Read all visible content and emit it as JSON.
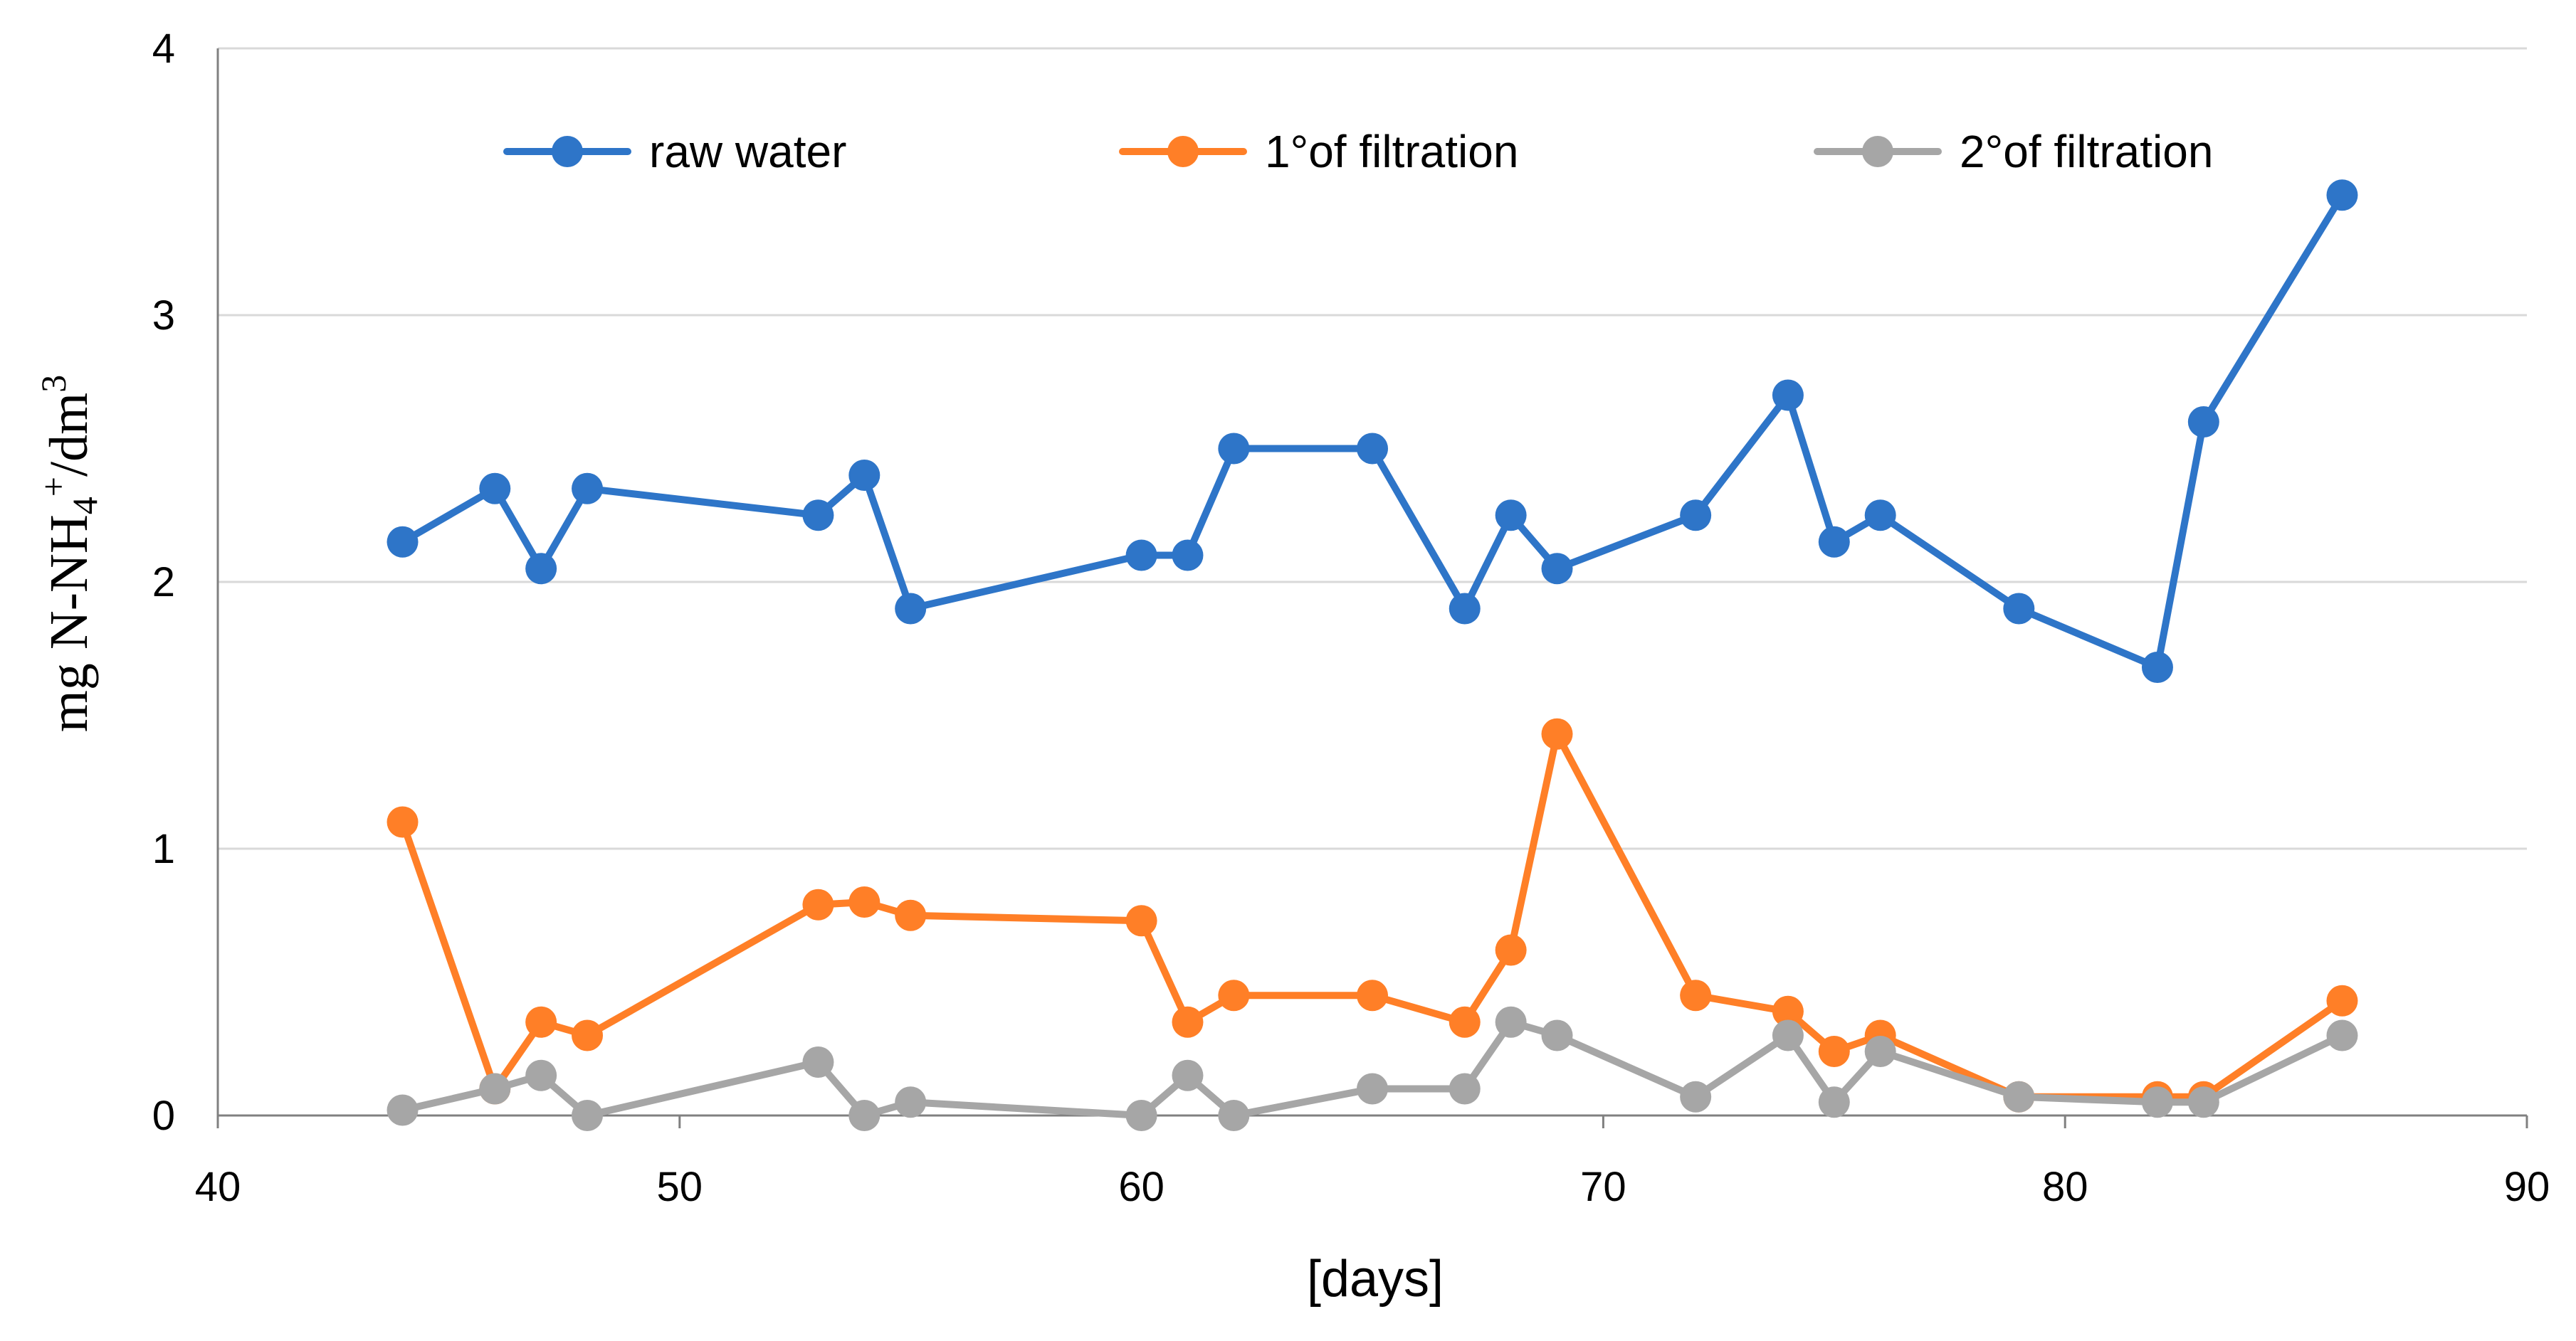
{
  "chart_data": {
    "type": "line",
    "title": "",
    "xlabel": "[days]",
    "ylabel": {
      "prefix": "mg  N-NH",
      "subscript": "4",
      "superscript": "+",
      "middle": "/dm",
      "superscript2": "3"
    },
    "xlim": [
      40,
      90
    ],
    "ylim": [
      0,
      4
    ],
    "xticks": [
      40,
      50,
      60,
      70,
      80,
      90
    ],
    "yticks": [
      0,
      1,
      2,
      3,
      4
    ],
    "grid": "horizontal",
    "legend_position": "top",
    "series": [
      {
        "name": "raw water",
        "color": "#2E75C8",
        "x": [
          44,
          46,
          47,
          48,
          53,
          54,
          55,
          60,
          61,
          62,
          65,
          67,
          68,
          69,
          72,
          74,
          75,
          76,
          79,
          82,
          83,
          86
        ],
        "y": [
          2.15,
          2.35,
          2.05,
          2.35,
          2.25,
          2.4,
          1.9,
          2.1,
          2.1,
          2.5,
          2.5,
          1.9,
          2.25,
          2.05,
          2.25,
          2.7,
          2.15,
          2.25,
          1.9,
          1.68,
          2.6,
          3.45
        ]
      },
      {
        "name": "1°of filtration",
        "color": "#FF7F27",
        "x": [
          44,
          46,
          47,
          48,
          53,
          54,
          55,
          60,
          61,
          62,
          65,
          67,
          68,
          69,
          72,
          74,
          75,
          76,
          79,
          82,
          83,
          86
        ],
        "y": [
          1.1,
          0.1,
          0.35,
          0.3,
          0.79,
          0.8,
          0.75,
          0.73,
          0.35,
          0.45,
          0.45,
          0.35,
          0.62,
          1.43,
          0.45,
          0.39,
          0.24,
          0.3,
          0.07,
          0.07,
          0.07,
          0.43
        ]
      },
      {
        "name": "2°of filtration",
        "color": "#A6A6A6",
        "x": [
          44,
          46,
          47,
          48,
          53,
          54,
          55,
          60,
          61,
          62,
          65,
          67,
          68,
          69,
          72,
          74,
          75,
          76,
          79,
          82,
          83,
          86
        ],
        "y": [
          0.02,
          0.1,
          0.15,
          0.0,
          0.2,
          0.0,
          0.05,
          0.0,
          0.15,
          0.0,
          0.1,
          0.1,
          0.35,
          0.3,
          0.07,
          0.3,
          0.05,
          0.24,
          0.07,
          0.05,
          0.05,
          0.3
        ]
      }
    ]
  }
}
